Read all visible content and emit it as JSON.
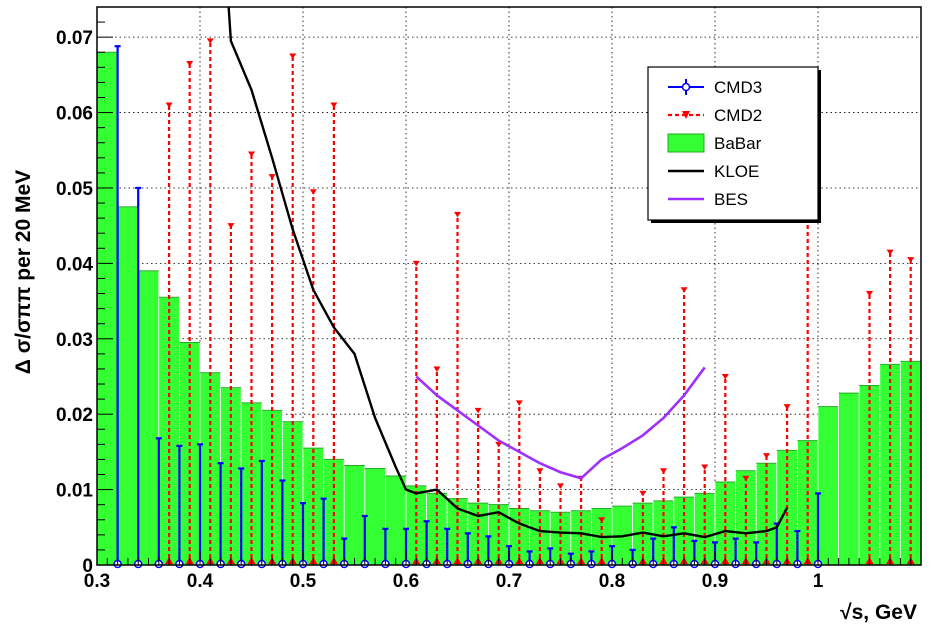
{
  "chart_data": {
    "type": "bar",
    "xlabel": "√s, GeV",
    "ylabel": "Δ σ/σππ per 20 MeV",
    "xlim": [
      0.3,
      1.1
    ],
    "ylim": [
      0,
      0.074
    ],
    "grid": true,
    "legend_position": "top-right",
    "x_ticks": [
      "0.3",
      "0.4",
      "0.5",
      "0.6",
      "0.7",
      "0.8",
      "0.9",
      "1"
    ],
    "y_ticks": [
      "0",
      "0.01",
      "0.02",
      "0.03",
      "0.04",
      "0.05",
      "0.06",
      "0.07"
    ],
    "colors": {
      "CMD3": "#0000ff",
      "CMD2": "#ff0000",
      "BaBar": "#33ff33",
      "BaBar_edge": "#22aa22",
      "KLOE": "#000000",
      "BES": "#9b30ff"
    },
    "series": [
      {
        "name": "BaBar",
        "kind": "histogram",
        "bin_width": 0.02,
        "x": [
          0.31,
          0.33,
          0.35,
          0.37,
          0.39,
          0.41,
          0.43,
          0.45,
          0.47,
          0.49,
          0.51,
          0.53,
          0.55,
          0.57,
          0.59,
          0.61,
          0.63,
          0.65,
          0.67,
          0.69,
          0.71,
          0.73,
          0.75,
          0.77,
          0.79,
          0.81,
          0.83,
          0.85,
          0.87,
          0.89,
          0.91,
          0.93,
          0.95,
          0.97,
          0.99,
          1.01,
          1.03,
          1.05,
          1.07,
          1.09
        ],
        "y": [
          0.068,
          0.0475,
          0.039,
          0.0355,
          0.0295,
          0.0255,
          0.0235,
          0.0215,
          0.0205,
          0.019,
          0.0155,
          0.014,
          0.0132,
          0.0128,
          0.0118,
          0.0105,
          0.0095,
          0.0088,
          0.0082,
          0.008,
          0.0075,
          0.0072,
          0.007,
          0.0072,
          0.0075,
          0.0078,
          0.0082,
          0.0085,
          0.009,
          0.0095,
          0.011,
          0.0125,
          0.0135,
          0.0152,
          0.0165,
          0.021,
          0.0228,
          0.0238,
          0.0266,
          0.027
        ]
      },
      {
        "name": "CMD3",
        "kind": "errorbars",
        "x": [
          0.32,
          0.34,
          0.36,
          0.38,
          0.4,
          0.42,
          0.44,
          0.46,
          0.48,
          0.5,
          0.52,
          0.54,
          0.56,
          0.58,
          0.6,
          0.62,
          0.64,
          0.66,
          0.68,
          0.7,
          0.72,
          0.74,
          0.76,
          0.78,
          0.8,
          0.82,
          0.84,
          0.86,
          0.88,
          0.9,
          0.92,
          0.94,
          0.96,
          0.98,
          1.0
        ],
        "y": [
          0,
          0,
          0,
          0,
          0,
          0,
          0,
          0,
          0,
          0,
          0,
          0,
          0,
          0,
          0,
          0,
          0,
          0,
          0,
          0,
          0,
          0,
          0,
          0,
          0,
          0,
          0,
          0,
          0,
          0,
          0,
          0,
          0,
          0,
          0
        ],
        "err_up": [
          0.0688,
          0.05,
          0.0168,
          0.0158,
          0.016,
          0.0135,
          0.0128,
          0.0138,
          0.0112,
          0.0082,
          0.0088,
          0.0035,
          0.0065,
          0.0048,
          0.0048,
          0.0058,
          0.0048,
          0.0042,
          0.0038,
          0.0025,
          0.0018,
          0.0022,
          0.0015,
          0.0018,
          0.0025,
          0.002,
          0.0035,
          0.005,
          0.0032,
          0.003,
          0.0035,
          0.003,
          0.0055,
          0.0045,
          0.0095
        ]
      },
      {
        "name": "CMD2",
        "kind": "errorbars",
        "x": [
          0.37,
          0.39,
          0.41,
          0.43,
          0.45,
          0.47,
          0.49,
          0.51,
          0.53,
          0.61,
          0.63,
          0.65,
          0.67,
          0.69,
          0.71,
          0.73,
          0.75,
          0.77,
          0.79,
          0.83,
          0.85,
          0.87,
          0.89,
          0.91,
          0.93,
          0.95,
          0.97,
          0.99,
          1.05,
          1.07,
          1.09
        ],
        "y": [
          0,
          0,
          0,
          0,
          0,
          0,
          0,
          0,
          0,
          0,
          0,
          0,
          0,
          0,
          0,
          0,
          0,
          0,
          0,
          0,
          0,
          0,
          0,
          0,
          0,
          0,
          0,
          0,
          0,
          0,
          0
        ],
        "err_up": [
          0.061,
          0.0665,
          0.0695,
          0.045,
          0.0545,
          0.0515,
          0.0675,
          0.0495,
          0.061,
          0.04,
          0.026,
          0.0465,
          0.0205,
          0.016,
          0.0215,
          0.0125,
          0.0105,
          0.0115,
          0.006,
          0.0095,
          0.0125,
          0.0365,
          0.013,
          0.025,
          0.0115,
          0.0145,
          0.021,
          0.046,
          0.036,
          0.0415,
          0.0405
        ]
      },
      {
        "name": "KLOE",
        "kind": "line",
        "x": [
          0.42,
          0.43,
          0.45,
          0.47,
          0.49,
          0.51,
          0.53,
          0.55,
          0.57,
          0.59,
          0.6,
          0.61,
          0.63,
          0.65,
          0.67,
          0.69,
          0.71,
          0.73,
          0.75,
          0.77,
          0.79,
          0.81,
          0.83,
          0.85,
          0.87,
          0.89,
          0.91,
          0.93,
          0.95,
          0.96,
          0.97
        ],
        "y": [
          0.09,
          0.0695,
          0.063,
          0.054,
          0.0445,
          0.0365,
          0.0315,
          0.028,
          0.0195,
          0.013,
          0.01,
          0.0095,
          0.01,
          0.0075,
          0.0065,
          0.007,
          0.0055,
          0.0045,
          0.0043,
          0.0042,
          0.0037,
          0.0038,
          0.0043,
          0.0038,
          0.0042,
          0.0037,
          0.0045,
          0.0042,
          0.0045,
          0.005,
          0.0076
        ]
      },
      {
        "name": "BES",
        "kind": "line",
        "x": [
          0.61,
          0.63,
          0.65,
          0.67,
          0.69,
          0.71,
          0.73,
          0.75,
          0.77,
          0.79,
          0.81,
          0.83,
          0.85,
          0.87,
          0.89
        ],
        "y": [
          0.025,
          0.0225,
          0.0205,
          0.0185,
          0.0165,
          0.015,
          0.0135,
          0.0123,
          0.0115,
          0.014,
          0.0155,
          0.0172,
          0.0195,
          0.0225,
          0.0262
        ]
      }
    ]
  },
  "legend": {
    "items": [
      {
        "label": "CMD3"
      },
      {
        "label": "CMD2"
      },
      {
        "label": "BaBar"
      },
      {
        "label": "KLOE"
      },
      {
        "label": "BES"
      }
    ]
  }
}
